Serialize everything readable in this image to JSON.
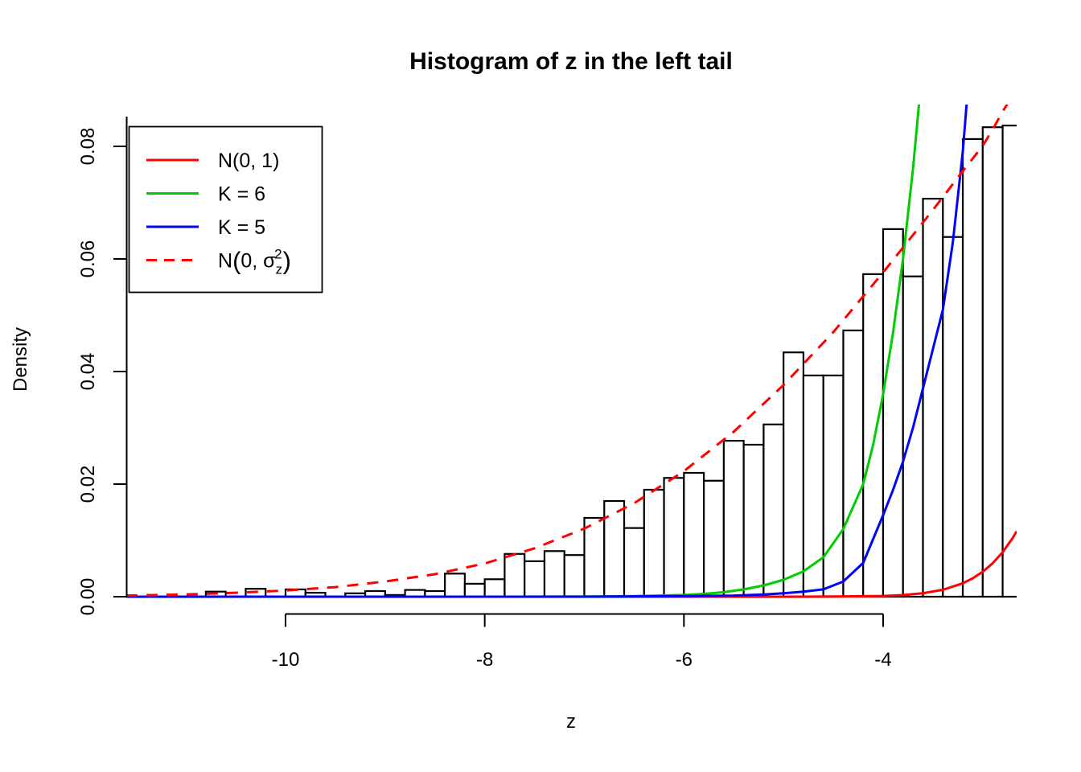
{
  "chart_data": {
    "type": "histogram",
    "title": "Histogram of z in the left tail",
    "xlabel": "z",
    "ylabel": "Density",
    "xlim": [
      -11.6,
      -2.66
    ],
    "ylim": [
      0,
      0.0875
    ],
    "grid": false,
    "x_ticks": {
      "values": [
        -10,
        -8,
        -6,
        -4
      ],
      "labels": [
        "-10",
        "-8",
        "-6",
        "-4"
      ]
    },
    "y_ticks": {
      "values": [
        0,
        0.02,
        0.04,
        0.06,
        0.08
      ],
      "labels": [
        "0.00",
        "0.02",
        "0.04",
        "0.06",
        "0.08"
      ]
    },
    "histogram": {
      "bin_start": -10.8,
      "bin_width": 0.2,
      "bar_fill": "#FFFFFF",
      "bar_stroke": "#000000",
      "densities": [
        0.0009,
        0,
        0.0014,
        0,
        0.0013,
        0.0007,
        0,
        0.0006,
        0.001,
        0.0003,
        0.0012,
        0.001,
        0.0041,
        0.0023,
        0.0031,
        0.0076,
        0.0063,
        0.0081,
        0.0074,
        0.014,
        0.017,
        0.0122,
        0.019,
        0.0211,
        0.022,
        0.0206,
        0.0277,
        0.027,
        0.0306,
        0.0434,
        0.0393,
        0.0393,
        0.0473,
        0.0573,
        0.0653,
        0.0569,
        0.0707,
        0.0639,
        0.0813,
        0.0834,
        0.0837
      ]
    },
    "series": [
      {
        "name": "N(0, 1)",
        "color": "#FF0000",
        "dash": false,
        "points": [
          [
            -11.6,
            0
          ],
          [
            -9,
            0
          ],
          [
            -7,
            0
          ],
          [
            -6,
            0
          ],
          [
            -5.5,
            0
          ],
          [
            -5,
            1e-06
          ],
          [
            -4.8,
            4e-06
          ],
          [
            -4.6,
            2e-05
          ],
          [
            -4.4,
            5e-05
          ],
          [
            -4.2,
            9e-05
          ],
          [
            -4,
            0.00013
          ],
          [
            -3.8,
            0.00029
          ],
          [
            -3.6,
            0.00061
          ],
          [
            -3.4,
            0.00123
          ],
          [
            -3.2,
            0.00238
          ],
          [
            -3.1,
            0.00327
          ],
          [
            -3,
            0.00443
          ],
          [
            -2.9,
            0.00595
          ],
          [
            -2.8,
            0.00792
          ],
          [
            -2.7,
            0.01042
          ],
          [
            -2.66,
            0.0116
          ]
        ]
      },
      {
        "name": "K = 6",
        "color": "#00CD00",
        "dash": false,
        "points": [
          [
            -11.6,
            0
          ],
          [
            -9,
            0
          ],
          [
            -8,
            0
          ],
          [
            -7,
            3e-05
          ],
          [
            -6.5,
            0.0001
          ],
          [
            -6,
            0.0003
          ],
          [
            -5.8,
            0.0005
          ],
          [
            -5.6,
            0.0008
          ],
          [
            -5.4,
            0.0013
          ],
          [
            -5.2,
            0.002
          ],
          [
            -5,
            0.003
          ],
          [
            -4.8,
            0.0045
          ],
          [
            -4.6,
            0.007
          ],
          [
            -4.4,
            0.012
          ],
          [
            -4.2,
            0.02
          ],
          [
            -4.1,
            0.027
          ],
          [
            -4,
            0.036
          ],
          [
            -3.9,
            0.047
          ],
          [
            -3.8,
            0.06
          ],
          [
            -3.7,
            0.076
          ],
          [
            -3.6,
            0.095
          ]
        ]
      },
      {
        "name": "K = 5",
        "color": "#0000FF",
        "dash": false,
        "points": [
          [
            -11.6,
            0
          ],
          [
            -8,
            0
          ],
          [
            -7,
            0
          ],
          [
            -6.5,
            5e-05
          ],
          [
            -6,
            0.0001
          ],
          [
            -5.5,
            0.0002
          ],
          [
            -5.2,
            0.0004
          ],
          [
            -5,
            0.0006
          ],
          [
            -4.8,
            0.0009
          ],
          [
            -4.6,
            0.0013
          ],
          [
            -4.4,
            0.0027
          ],
          [
            -4.2,
            0.006
          ],
          [
            -4,
            0.0145
          ],
          [
            -3.9,
            0.019
          ],
          [
            -3.8,
            0.024
          ],
          [
            -3.7,
            0.03
          ],
          [
            -3.6,
            0.037
          ],
          [
            -3.5,
            0.044
          ],
          [
            -3.4,
            0.051
          ],
          [
            -3.3,
            0.063
          ],
          [
            -3.2,
            0.079
          ],
          [
            -3.15,
            0.09
          ]
        ]
      },
      {
        "name": "N(0, σz²)",
        "color": "#FF0000",
        "dash": true,
        "points": [
          [
            -11.6,
            0.0002
          ],
          [
            -11,
            0.0004
          ],
          [
            -10.5,
            0.0007
          ],
          [
            -10,
            0.0011
          ],
          [
            -9.5,
            0.0017
          ],
          [
            -9,
            0.0027
          ],
          [
            -8.5,
            0.004
          ],
          [
            -8,
            0.0059
          ],
          [
            -7.5,
            0.0086
          ],
          [
            -7,
            0.0121
          ],
          [
            -6.5,
            0.0166
          ],
          [
            -6,
            0.0223
          ],
          [
            -5.5,
            0.0293
          ],
          [
            -5,
            0.0376
          ],
          [
            -4.5,
            0.047
          ],
          [
            -4,
            0.0576
          ],
          [
            -3.5,
            0.0687
          ],
          [
            -3.2,
            0.0756
          ],
          [
            -3,
            0.0801
          ],
          [
            -2.9,
            0.083
          ],
          [
            -2.8,
            0.0862
          ],
          [
            -2.7,
            0.089
          ]
        ]
      }
    ],
    "legend": {
      "position": "topleft",
      "items": [
        {
          "label": "N(0, 1)",
          "color": "#FF0000",
          "dash": false
        },
        {
          "label": "K = 6",
          "color": "#00CD00",
          "dash": false
        },
        {
          "label": "K = 5",
          "color": "#0000FF",
          "dash": false
        },
        {
          "label": "N(0, σz²)",
          "color": "#FF0000",
          "dash": true,
          "rich": {
            "prefix": "N",
            "open_paren": "(",
            "mid": "0, σ",
            "sub": "z",
            "sup": "2",
            "close_paren": ")"
          }
        }
      ]
    }
  }
}
